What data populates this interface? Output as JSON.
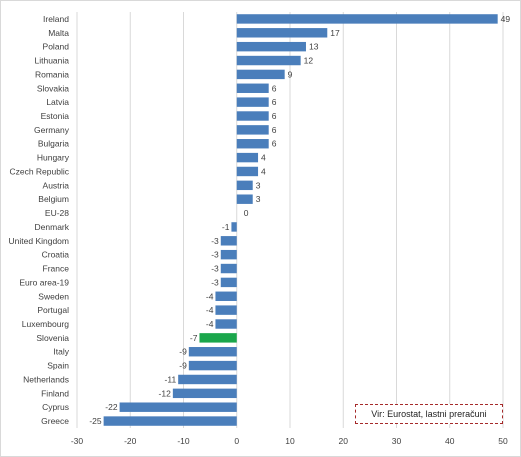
{
  "chart_data": {
    "type": "bar",
    "orientation": "horizontal",
    "categories": [
      "Ireland",
      "Malta",
      "Poland",
      "Lithuania",
      "Romania",
      "Slovakia",
      "Latvia",
      "Estonia",
      "Germany",
      "Bulgaria",
      "Hungary",
      "Czech Republic",
      "Austria",
      "Belgium",
      "EU-28",
      "Denmark",
      "United Kingdom",
      "Croatia",
      "France",
      "Euro area-19",
      "Sweden",
      "Portugal",
      "Luxembourg",
      "Slovenia",
      "Italy",
      "Spain",
      "Netherlands",
      "Finland",
      "Cyprus",
      "Greece"
    ],
    "values": [
      49,
      17,
      13,
      12,
      9,
      6,
      6,
      6,
      6,
      6,
      4,
      4,
      3,
      3,
      0,
      -1,
      -3,
      -3,
      -3,
      -3,
      -4,
      -4,
      -4,
      -7,
      -9,
      -9,
      -11,
      -12,
      -22,
      -25
    ],
    "highlight": "Slovenia",
    "colors": {
      "bar": "#4a7ebb",
      "highlight": "#1aa64b",
      "grid": "#d9d9d9"
    },
    "xlim": [
      -30,
      50
    ],
    "xticks": [
      -30,
      -20,
      -10,
      0,
      10,
      20,
      30,
      40,
      50
    ],
    "grid": true,
    "source_note": "Vir: Eurostat, lastni preračuni"
  }
}
